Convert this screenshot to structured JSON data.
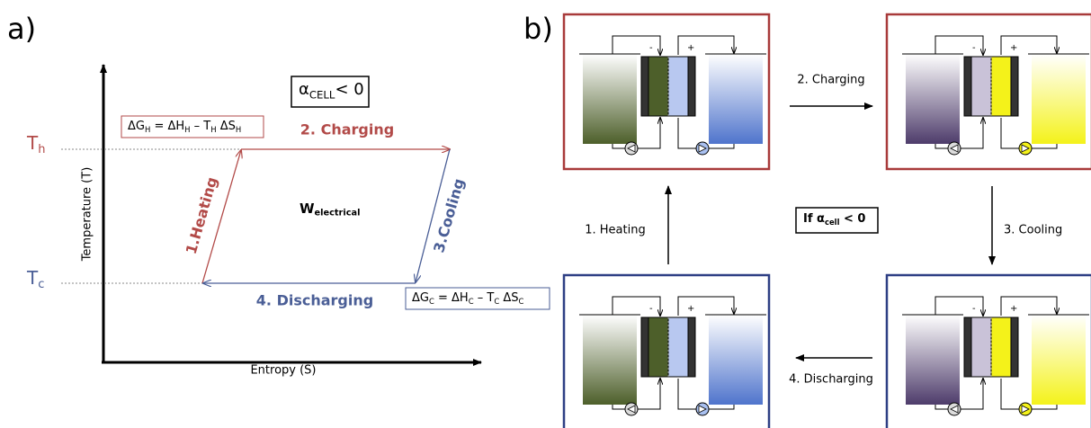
{
  "panel_a": {
    "label": "a)",
    "y_axis_label": "Temperature (T)",
    "x_axis_label": "Entropy (S)",
    "t_hot": [
      {
        "text": "T"
      },
      {
        "text": "h",
        "sub": true
      }
    ],
    "t_cold": [
      {
        "text": "T"
      },
      {
        "text": "c",
        "sub": true
      }
    ],
    "condition": [
      {
        "text": "α"
      },
      {
        "text": "CELL",
        "sub": true
      },
      {
        "text": "< 0"
      }
    ],
    "work": [
      {
        "text": "W"
      },
      {
        "text": "electrical",
        "sub": true
      }
    ],
    "eq_hot": [
      {
        "text": "ΔG"
      },
      {
        "text": "H",
        "sub": true
      },
      {
        "text": " = ΔH"
      },
      {
        "text": "H",
        "sub": true
      },
      {
        "text": " – T"
      },
      {
        "text": "H",
        "sub": true
      },
      {
        "text": " ΔS"
      },
      {
        "text": "H",
        "sub": true
      }
    ],
    "eq_cold": [
      {
        "text": "ΔG"
      },
      {
        "text": "C",
        "sub": true
      },
      {
        "text": " = ΔH"
      },
      {
        "text": "C",
        "sub": true
      },
      {
        "text": " – T"
      },
      {
        "text": "C",
        "sub": true
      },
      {
        "text": " ΔS"
      },
      {
        "text": "C",
        "sub": true
      }
    ],
    "heating": "1.Heating",
    "charging": "2. Charging",
    "cooling": "3.Cooling",
    "discharging": "4. Discharging"
  },
  "panel_b": {
    "label": "b)",
    "heating": "1. Heating",
    "charging": "2. Charging",
    "cooling": "3. Cooling",
    "discharging": "4. Discharging",
    "condition": [
      {
        "text": "If α"
      },
      {
        "text": "cell",
        "sub": true
      },
      {
        "text": " < 0"
      }
    ],
    "terminals": [
      "-",
      "+"
    ]
  }
}
